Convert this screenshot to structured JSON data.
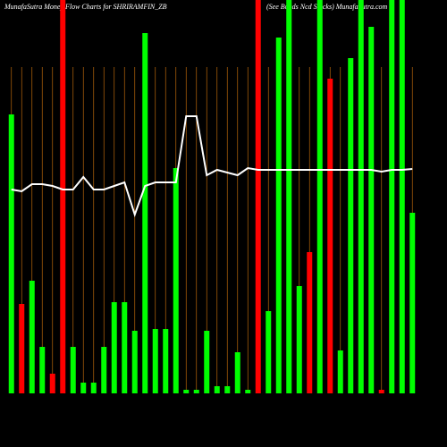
{
  "chart_data": {
    "type": "bar",
    "title": "MunafaSutra  Money Flow  Charts for SHRIRAMFIN_ZB",
    "subtitle": "(See Bonds Ncd Stocks) MunafaSutra.com",
    "categories": [
      null,
      null,
      null,
      null,
      null,
      null,
      null,
      null,
      null,
      null,
      null,
      null,
      null,
      null,
      null,
      null,
      null,
      null,
      null,
      null,
      null,
      null,
      null,
      null,
      null,
      null,
      null,
      null,
      null,
      null,
      null,
      null,
      null,
      null,
      null,
      null,
      null,
      null,
      null,
      null
    ],
    "ylim": [
      0,
      440
    ],
    "bars": {
      "values": [
        312,
        100,
        126,
        52,
        22,
        440,
        52,
        12,
        12,
        52,
        102,
        102,
        70,
        403,
        72,
        72,
        252,
        4,
        4,
        70,
        8,
        8,
        46,
        4,
        440,
        92,
        398,
        440,
        120,
        158,
        440,
        352,
        48,
        375,
        440,
        410,
        4,
        440,
        440,
        202
      ],
      "colors": [
        "#00ff00",
        "#ff0000",
        "#00ff00",
        "#00ff00",
        "#ff0000",
        "#ff0000",
        "#00ff00",
        "#00ff00",
        "#00ff00",
        "#00ff00",
        "#00ff00",
        "#00ff00",
        "#00ff00",
        "#00ff00",
        "#00ff00",
        "#00ff00",
        "#00ff00",
        "#00ff00",
        "#00ff00",
        "#00ff00",
        "#00ff00",
        "#00ff00",
        "#00ff00",
        "#00ff00",
        "#ff0000",
        "#00ff00",
        "#00ff00",
        "#00ff00",
        "#00ff00",
        "#ff0000",
        "#00ff00",
        "#ff0000",
        "#00ff00",
        "#00ff00",
        "#00ff00",
        "#00ff00",
        "#ff0000",
        "#00ff00",
        "#00ff00",
        "#00ff00"
      ]
    },
    "line": {
      "color": "#ffffff",
      "values": [
        228,
        226,
        234,
        234,
        232,
        228,
        228,
        242,
        228,
        228,
        232,
        236,
        200,
        232,
        236,
        236,
        236,
        310,
        310,
        244,
        250,
        247,
        244,
        252,
        250,
        250,
        250,
        250,
        250,
        250,
        250,
        250,
        250,
        250,
        250,
        250,
        248,
        250,
        250,
        251
      ]
    },
    "divider_color": "#b8660b"
  }
}
